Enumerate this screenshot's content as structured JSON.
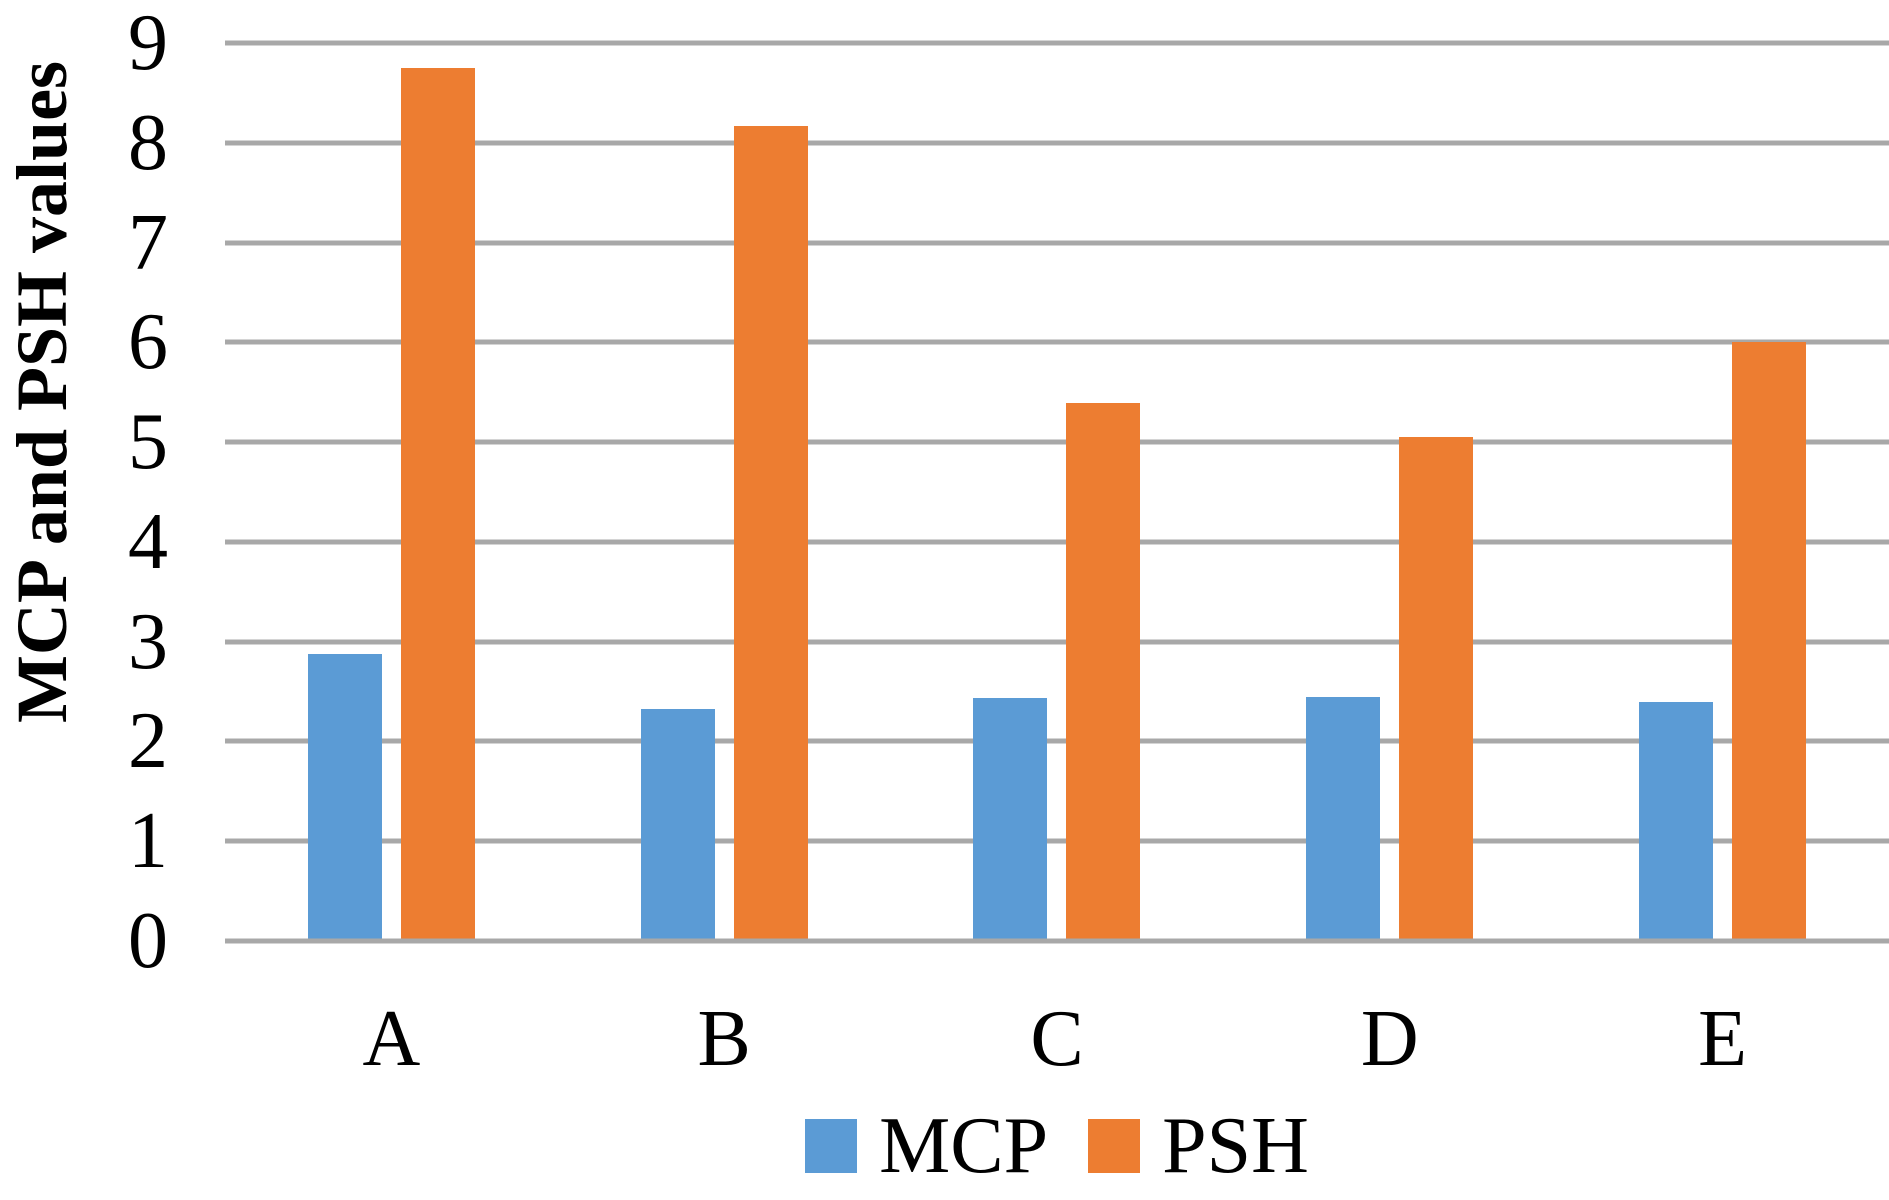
{
  "chart_data": {
    "type": "bar",
    "title": "",
    "xlabel": "",
    "ylabel": "MCP and PSH values",
    "categories": [
      "A",
      "B",
      "C",
      "D",
      "E"
    ],
    "series": [
      {
        "name": "MCP",
        "color": "#5B9BD5",
        "values": [
          2.88,
          2.33,
          2.44,
          2.45,
          2.4
        ]
      },
      {
        "name": "PSH",
        "color": "#ED7D31",
        "values": [
          8.75,
          8.17,
          5.39,
          5.05,
          6.0
        ]
      }
    ],
    "ylim": [
      0,
      9
    ],
    "ytick_step": 1,
    "yticks": [
      0,
      1,
      2,
      3,
      4,
      5,
      6,
      7,
      8,
      9
    ],
    "grid": true,
    "gridline_color": "#A8A8A8",
    "legend_position": "bottom",
    "legend_labels": [
      "MCP",
      "PSH"
    ],
    "axis_text_color": "#000000"
  }
}
